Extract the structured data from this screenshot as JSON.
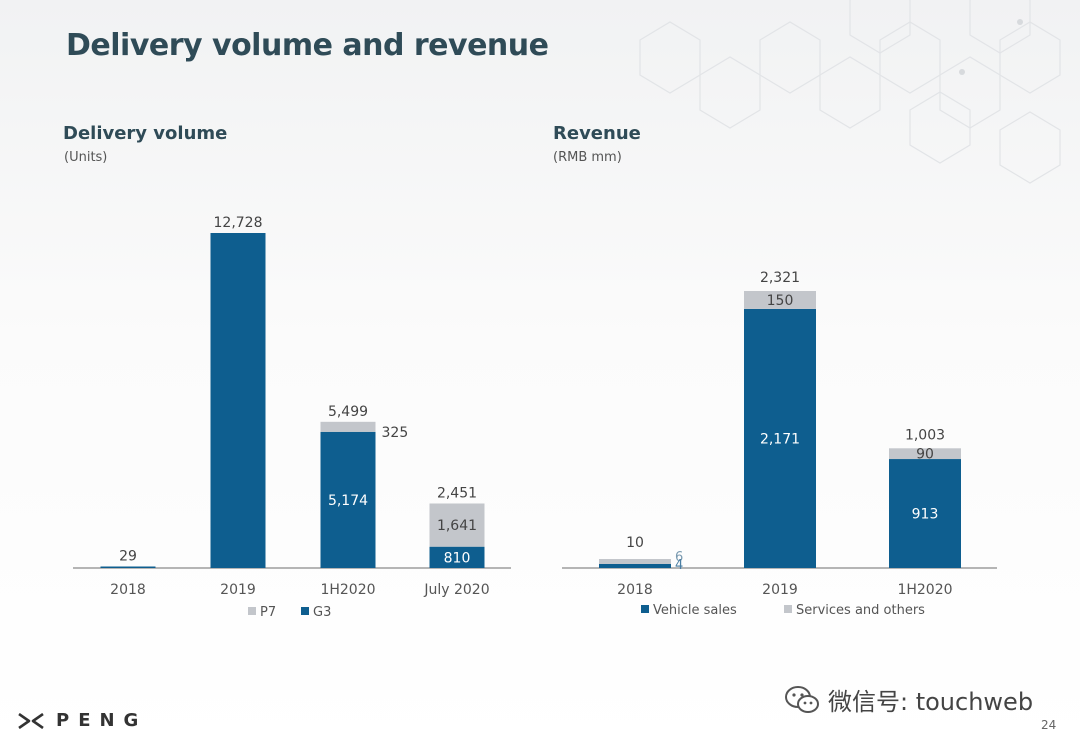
{
  "slide": {
    "title": "Delivery volume and revenue",
    "page_number": "24",
    "brand": "PENG",
    "watermark": "微信号: touchweb"
  },
  "colors": {
    "primary": "#0e5e8f",
    "secondary": "#c3c6cb",
    "title": "#2f4b57"
  },
  "chart_data": [
    {
      "type": "bar",
      "stacked": true,
      "title": "Delivery volume",
      "subtitle": "(Units)",
      "categories": [
        "2018",
        "2019",
        "1H2020",
        "July 2020"
      ],
      "series": [
        {
          "name": "G3",
          "values": [
            29,
            12728,
            5174,
            810
          ],
          "labels": [
            "",
            "",
            "5,174",
            "810"
          ]
        },
        {
          "name": "P7",
          "values": [
            0,
            0,
            325,
            1641
          ],
          "labels": [
            "",
            "",
            "325",
            "1,641"
          ]
        }
      ],
      "totals": [
        "29",
        "12,728",
        "5,499",
        "2,451"
      ],
      "legend": [
        "P7",
        "G3"
      ],
      "legend_position": "bottom",
      "ylim": [
        0,
        12728
      ]
    },
    {
      "type": "bar",
      "stacked": true,
      "title": "Revenue",
      "subtitle": "(RMB mm)",
      "categories": [
        "2018",
        "2019",
        "1H2020"
      ],
      "series": [
        {
          "name": "Vehicle sales",
          "values": [
            4,
            2171,
            913
          ],
          "labels": [
            "4",
            "2,171",
            "913"
          ]
        },
        {
          "name": "Services and others",
          "values": [
            6,
            150,
            90
          ],
          "labels": [
            "6",
            "150",
            "90"
          ]
        }
      ],
      "totals": [
        "10",
        "2,321",
        "1,003"
      ],
      "legend": [
        "Vehicle sales",
        "Services and others"
      ],
      "legend_position": "bottom",
      "ylim": [
        0,
        2321
      ]
    }
  ]
}
